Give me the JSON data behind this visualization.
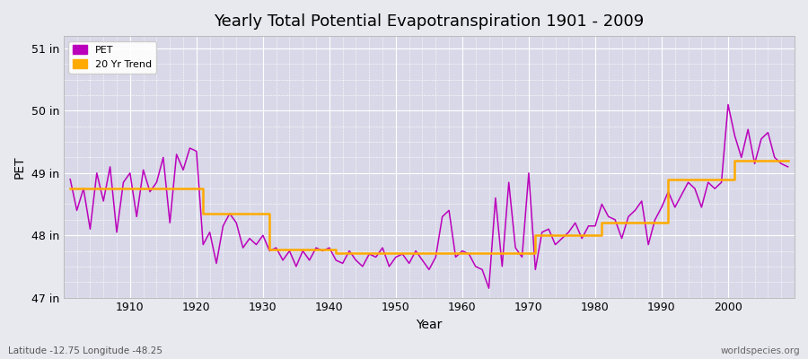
{
  "title": "Yearly Total Potential Evapotranspiration 1901 - 2009",
  "xlabel": "Year",
  "ylabel": "PET",
  "bottom_left_label": "Latitude -12.75 Longitude -48.25",
  "bottom_right_label": "worldspecies.org",
  "pet_color": "#bb00bb",
  "trend_color": "#ffaa00",
  "bg_color": "#e8e8ef",
  "plot_bg_color": "#d8d8e8",
  "grid_color": "#ffffff",
  "ylim": [
    47.0,
    51.2
  ],
  "yticks": [
    47,
    48,
    49,
    50,
    51
  ],
  "ytick_labels": [
    "47 in",
    "48 in",
    "49 in",
    "50 in",
    "51 in"
  ],
  "xlim": [
    1900,
    2010
  ],
  "xticks": [
    1910,
    1920,
    1930,
    1940,
    1950,
    1960,
    1970,
    1980,
    1990,
    2000
  ],
  "years": [
    1901,
    1902,
    1903,
    1904,
    1905,
    1906,
    1907,
    1908,
    1909,
    1910,
    1911,
    1912,
    1913,
    1914,
    1915,
    1916,
    1917,
    1918,
    1919,
    1920,
    1921,
    1922,
    1923,
    1924,
    1925,
    1926,
    1927,
    1928,
    1929,
    1930,
    1931,
    1932,
    1933,
    1934,
    1935,
    1936,
    1937,
    1938,
    1939,
    1940,
    1941,
    1942,
    1943,
    1944,
    1945,
    1946,
    1947,
    1948,
    1949,
    1950,
    1951,
    1952,
    1953,
    1954,
    1955,
    1956,
    1957,
    1958,
    1959,
    1960,
    1961,
    1962,
    1963,
    1964,
    1965,
    1966,
    1967,
    1968,
    1969,
    1970,
    1971,
    1972,
    1973,
    1974,
    1975,
    1976,
    1977,
    1978,
    1979,
    1980,
    1981,
    1982,
    1983,
    1984,
    1985,
    1986,
    1987,
    1988,
    1989,
    1990,
    1991,
    1992,
    1993,
    1994,
    1995,
    1996,
    1997,
    1998,
    1999,
    2000,
    2001,
    2002,
    2003,
    2004,
    2005,
    2006,
    2007,
    2008,
    2009
  ],
  "pet": [
    48.9,
    48.4,
    48.75,
    48.1,
    49.0,
    48.55,
    49.1,
    48.05,
    48.85,
    49.0,
    48.3,
    49.05,
    48.7,
    48.85,
    49.25,
    48.2,
    49.3,
    49.05,
    49.4,
    49.35,
    47.85,
    48.05,
    47.55,
    48.15,
    48.35,
    48.2,
    47.8,
    47.95,
    47.85,
    48.0,
    47.75,
    47.8,
    47.6,
    47.75,
    47.5,
    47.75,
    47.6,
    47.8,
    47.75,
    47.8,
    47.6,
    47.55,
    47.75,
    47.6,
    47.5,
    47.7,
    47.65,
    47.8,
    47.5,
    47.65,
    47.7,
    47.55,
    47.75,
    47.6,
    47.45,
    47.65,
    48.3,
    48.4,
    47.65,
    47.75,
    47.7,
    47.5,
    47.45,
    47.15,
    48.6,
    47.5,
    48.85,
    47.8,
    47.65,
    49.0,
    47.45,
    48.05,
    48.1,
    47.85,
    47.95,
    48.05,
    48.2,
    47.95,
    48.15,
    48.15,
    48.5,
    48.3,
    48.25,
    47.95,
    48.3,
    48.4,
    48.55,
    47.85,
    48.25,
    48.45,
    48.7,
    48.45,
    48.65,
    48.85,
    48.75,
    48.45,
    48.85,
    48.75,
    48.85,
    50.1,
    49.6,
    49.25,
    49.7,
    49.15,
    49.55,
    49.65,
    49.25,
    49.15,
    49.1
  ],
  "trend": [
    48.75,
    48.75,
    48.75,
    48.75,
    48.75,
    48.75,
    48.75,
    48.75,
    48.75,
    48.75,
    48.75,
    48.75,
    48.75,
    48.75,
    48.75,
    48.75,
    48.75,
    48.75,
    48.75,
    48.75,
    48.35,
    48.35,
    48.35,
    48.35,
    48.35,
    48.35,
    48.35,
    48.35,
    48.35,
    48.35,
    47.77,
    47.77,
    47.77,
    47.77,
    47.77,
    47.77,
    47.77,
    47.77,
    47.77,
    47.77,
    47.72,
    47.72,
    47.72,
    47.72,
    47.72,
    47.72,
    47.72,
    47.72,
    47.72,
    47.72,
    47.72,
    47.72,
    47.72,
    47.72,
    47.72,
    47.72,
    47.72,
    47.72,
    47.72,
    47.72,
    47.72,
    47.72,
    47.72,
    47.72,
    47.72,
    47.72,
    47.72,
    47.72,
    47.72,
    47.72,
    48.0,
    48.0,
    48.0,
    48.0,
    48.0,
    48.0,
    48.0,
    48.0,
    48.0,
    48.0,
    48.2,
    48.2,
    48.2,
    48.2,
    48.2,
    48.2,
    48.2,
    48.2,
    48.2,
    48.2,
    48.9,
    48.9,
    48.9,
    48.9,
    48.9,
    48.9,
    48.9,
    48.9,
    48.9,
    48.9,
    49.2,
    49.2,
    49.2,
    49.2,
    49.2,
    49.2,
    49.2,
    49.2,
    49.2
  ]
}
